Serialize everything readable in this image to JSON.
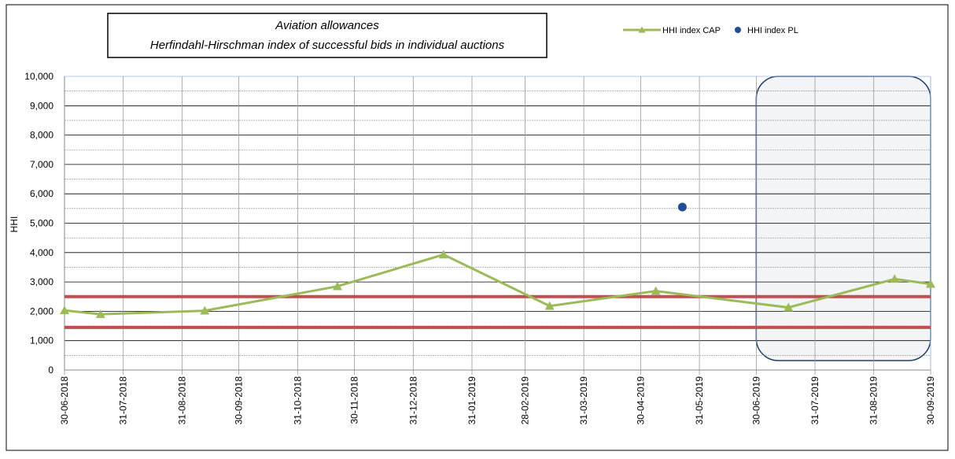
{
  "chart_data": {
    "type": "line",
    "title": "Aviation allowances",
    "subtitle": "Herfindahl-Hirschman index of successful bids in individual auctions",
    "y_label": "HHI",
    "xlim": [
      "30-06-2018",
      "30-09-2019"
    ],
    "xticks": [
      "30-06-2018",
      "31-07-2018",
      "31-08-2018",
      "30-09-2018",
      "31-10-2018",
      "30-11-2018",
      "31-12-2018",
      "31-01-2019",
      "28-02-2019",
      "31-03-2019",
      "30-04-2019",
      "31-05-2019",
      "30-06-2019",
      "31-07-2019",
      "31-08-2019",
      "30-09-2019"
    ],
    "ylim": [
      0,
      10000
    ],
    "yticks": [
      0,
      {
        "value": 1000,
        "label": "1,000"
      },
      {
        "value": 2000,
        "label": "2,000"
      },
      {
        "value": 3000,
        "label": "3,000"
      },
      {
        "value": 4000,
        "label": "4,000"
      },
      {
        "value": 5000,
        "label": "5,000"
      },
      {
        "value": 6000,
        "label": "6,000"
      },
      {
        "value": 7000,
        "label": "7,000"
      },
      {
        "value": 8000,
        "label": "8,000"
      },
      {
        "value": 9000,
        "label": "9,000"
      },
      {
        "value": 10000,
        "label": "10,000"
      }
    ],
    "y_minor_ticks": [
      500,
      1500,
      2500,
      3500,
      4500,
      5500,
      6500,
      7500,
      8500,
      9500
    ],
    "grid": true,
    "series": [
      {
        "name": "HHI index CAP",
        "color": "#9bbb59",
        "marker": "triangle",
        "x": [
          "30-06-2018",
          "19-07-2018",
          "12-09-2018",
          "21-11-2018",
          "16-01-2019",
          "13-03-2019",
          "08-05-2019",
          "17-07-2019",
          "11-09-2019",
          "30-09-2019"
        ],
        "values": [
          2030,
          1900,
          2020,
          2850,
          3930,
          2180,
          2690,
          2130,
          3100,
          2930
        ]
      },
      {
        "name": "HHI index PL",
        "color": "#1f4e96",
        "marker": "circle",
        "line": false,
        "x": [
          "22-05-2019"
        ],
        "values": [
          5550
        ]
      }
    ],
    "reference_lines": {
      "color": "#c0504d",
      "values": [
        2500,
        1450
      ]
    },
    "highlight": {
      "from": "30-06-2019",
      "to": "30-09-2019",
      "color": "#1f3f6e"
    }
  }
}
